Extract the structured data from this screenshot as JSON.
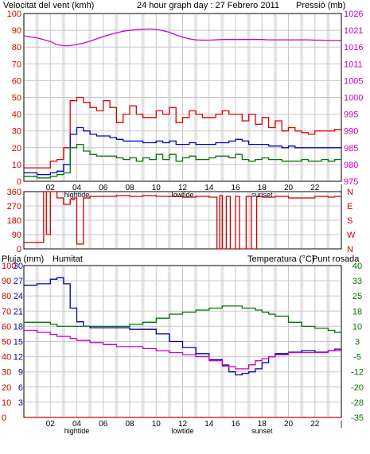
{
  "colors": {
    "wind": "#e00000",
    "gust": "#e00000",
    "wind_avg": "#0000c0",
    "wind_min": "#007700",
    "pressure": "#cc00cc",
    "direction": "#cc0000",
    "rain": "#cc0000",
    "humidity": "#0000aa",
    "temperature": "#007700",
    "dewpoint": "#cc00cc",
    "grid": "#c8c8c8",
    "grid_major": "#e4e4e4",
    "frame": "#000000"
  },
  "header": {
    "wind_label": "Velocitat del vent (kmh)",
    "title": "24 hour graph day : 27 Febrero 2011",
    "pressure_label": "Pressió (mb)"
  },
  "middle_header": {
    "rain_label": "Pluja (mm)",
    "humidity_label": "Humitat",
    "temperature_label": "Temperatura (°C)",
    "dewpoint_label": "Punt rosada"
  },
  "x_axis": {
    "tick_labels": [
      "02",
      "04",
      "06",
      "08",
      "10",
      "12",
      "14",
      "16",
      "18",
      "20",
      "22",
      ""
    ],
    "events": [
      "hightide",
      "lowtide",
      "sunset"
    ]
  },
  "chart_data": [
    {
      "type": "line",
      "title": "24 hour graph day : 27 Febrero 2011",
      "y_left_label": "Velocitat del vent (kmh)",
      "y_right_label": "Pressió (mb)",
      "y_left_ticks": [
        0,
        10,
        20,
        30,
        40,
        50,
        60,
        70,
        80,
        90,
        100
      ],
      "y_right_ticks": [
        975,
        980,
        985,
        990,
        995,
        1000,
        1005,
        1011,
        1016,
        1021,
        1026
      ],
      "ylim_left": [
        0,
        100
      ],
      "ylim_right": [
        975,
        1026
      ],
      "x_hours": [
        0,
        1,
        2,
        2.5,
        3,
        3.5,
        4,
        4.5,
        5,
        5.5,
        6,
        6.5,
        7,
        7.5,
        8,
        8.5,
        9,
        9.5,
        10,
        10.5,
        11,
        11.5,
        12,
        12.5,
        13,
        13.5,
        14,
        14.5,
        15,
        15.5,
        16,
        16.5,
        17,
        17.5,
        18,
        18.5,
        19,
        19.5,
        20,
        20.5,
        21,
        21.5,
        22,
        22.5,
        23,
        23.5
      ],
      "series": [
        {
          "name": "gust",
          "values": [
            8,
            8,
            12,
            13,
            20,
            48,
            50,
            47,
            44,
            42,
            48,
            44,
            35,
            40,
            45,
            40,
            38,
            38,
            42,
            40,
            44,
            35,
            38,
            42,
            40,
            38,
            38,
            40,
            42,
            40,
            40,
            36,
            40,
            34,
            38,
            32,
            36,
            30,
            32,
            30,
            29,
            28,
            30,
            30,
            30,
            31
          ]
        },
        {
          "name": "average",
          "values": [
            5,
            4,
            5,
            6,
            10,
            28,
            32,
            30,
            28,
            27,
            27,
            26,
            25,
            24,
            24,
            24,
            23,
            23,
            24,
            23,
            24,
            22,
            22,
            23,
            22,
            22,
            22,
            23,
            23,
            24,
            25,
            24,
            22,
            22,
            22,
            21,
            21,
            20,
            21,
            20,
            20,
            20,
            20,
            20,
            20,
            20
          ]
        },
        {
          "name": "minimum",
          "values": [
            3,
            2,
            3,
            4,
            5,
            20,
            22,
            18,
            16,
            15,
            15,
            15,
            14,
            13,
            14,
            12,
            14,
            13,
            16,
            13,
            16,
            12,
            14,
            15,
            13,
            13,
            14,
            15,
            15,
            14,
            16,
            13,
            12,
            13,
            14,
            13,
            13,
            12,
            12,
            12,
            13,
            12,
            12,
            13,
            12,
            13
          ]
        },
        {
          "name": "pressure",
          "values": [
            1019.2,
            1018.6,
            1017.5,
            1016.5,
            1016.2,
            1016.2,
            1016.6,
            1017.0,
            1017.6,
            1018.3,
            1019.0,
            1019.6,
            1020.1,
            1020.6,
            1020.9,
            1021.1,
            1021.2,
            1021.3,
            1021.2,
            1020.8,
            1020.3,
            1019.5,
            1018.8,
            1018.3,
            1018.0,
            1017.9,
            1017.9,
            1018.0,
            1018.1,
            1018.1,
            1018.1,
            1018.1,
            1018.1,
            1018.1,
            1018.1,
            1018.0,
            1018.0,
            1018.0,
            1018.0,
            1018.0,
            1018.0,
            1018.0,
            1017.9,
            1017.9,
            1017.8,
            1017.8
          ]
        }
      ]
    },
    {
      "type": "line",
      "title": "",
      "y_left_ticks": [
        0,
        90,
        180,
        270,
        360
      ],
      "y_right_labels": [
        "N",
        "W",
        "S",
        "E",
        "N"
      ],
      "ylim": [
        0,
        360
      ],
      "x_hours": [
        0,
        1,
        1.5,
        1.7,
        2,
        2.5,
        3,
        3.5,
        3.8,
        4,
        4.5,
        5,
        6,
        7,
        8,
        9,
        10,
        11,
        12,
        13,
        14,
        14.6,
        14.8,
        15.0,
        15.3,
        15.6,
        16.0,
        16.3,
        16.8,
        17.2,
        17.6,
        18,
        19,
        20,
        21,
        22,
        23,
        23.5
      ],
      "series": [
        {
          "name": "wind direction",
          "values": [
            40,
            40,
            360,
            90,
            360,
            320,
            280,
            310,
            320,
            30,
            320,
            330,
            330,
            335,
            330,
            335,
            330,
            330,
            325,
            330,
            325,
            0,
            335,
            0,
            330,
            0,
            330,
            0,
            330,
            0,
            330,
            325,
            330,
            320,
            320,
            330,
            325,
            330
          ]
        }
      ]
    },
    {
      "type": "line",
      "title": "",
      "y_left_label": "Pluja (mm)",
      "y_left2_label": "Humitat",
      "y_right_label": "Temperatura (°C)",
      "y_right2_label": "Punt rosada",
      "y_rain_ticks": [
        0,
        10,
        20,
        30,
        40,
        50,
        60,
        70,
        80,
        90,
        100
      ],
      "y_humidity_ticks": [
        3,
        6,
        9,
        12,
        15,
        18,
        21,
        24,
        27,
        30
      ],
      "y_temp_ticks": [
        -35,
        -28,
        -20,
        -12,
        -5,
        3,
        10,
        18,
        25,
        33,
        40
      ],
      "y_humidity_ticks_full": [
        0,
        10,
        20,
        30,
        40,
        50,
        60,
        70,
        80,
        90,
        100
      ],
      "ylim_temp": [
        -35,
        40
      ],
      "x_hours": [
        0,
        1,
        2,
        2.5,
        3,
        3.5,
        4,
        4.5,
        5,
        6,
        7,
        8,
        9,
        10,
        11,
        12,
        13,
        14,
        15,
        15.5,
        16,
        16.5,
        17,
        17.5,
        18,
        18.5,
        19,
        20,
        21,
        22,
        23,
        23.5
      ],
      "series": [
        {
          "name": "rain",
          "values": [
            0,
            0,
            0,
            0,
            0,
            0,
            0,
            0,
            0,
            0,
            0,
            0,
            0,
            0,
            0,
            0,
            0,
            0,
            0,
            0,
            0,
            0,
            0,
            0,
            0,
            0,
            0,
            0,
            0,
            0,
            0,
            0
          ]
        },
        {
          "name": "humidity",
          "values": [
            87,
            88,
            91,
            92,
            88,
            72,
            63,
            60,
            59,
            59,
            59,
            58,
            58,
            55,
            50,
            46,
            42,
            38,
            34,
            30,
            28,
            29,
            30,
            32,
            36,
            40,
            42,
            43,
            44,
            43,
            44,
            45
          ]
        },
        {
          "name": "temperature",
          "values": [
            12,
            12,
            11,
            10,
            10,
            10,
            10,
            10,
            10,
            10,
            10,
            11,
            12,
            14,
            16,
            17,
            18,
            19,
            20,
            20,
            20,
            19,
            19,
            18,
            17,
            16,
            15,
            12,
            10,
            9,
            8,
            7
          ]
        },
        {
          "name": "dewpoint",
          "values": [
            8,
            7,
            6,
            5,
            5,
            4,
            3,
            3,
            2,
            1,
            0,
            0,
            -1,
            -2,
            -3,
            -4,
            -5,
            -7,
            -9,
            -10,
            -11,
            -11,
            -9,
            -7,
            -6,
            -5,
            -4,
            -3,
            -3,
            -3,
            -2,
            -2
          ]
        }
      ]
    }
  ]
}
